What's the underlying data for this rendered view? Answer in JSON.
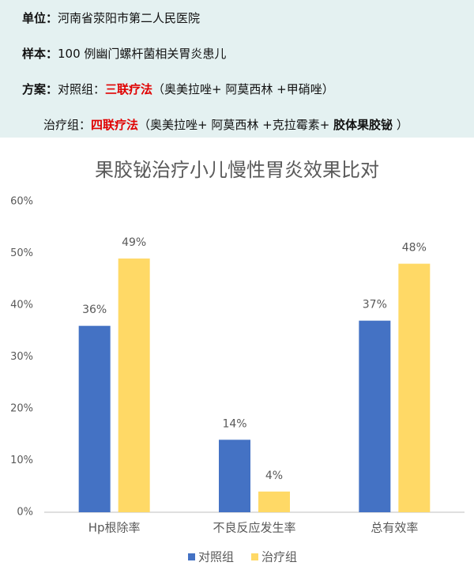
{
  "info": {
    "unit_label": "单位：",
    "unit": "河南省荥阳市第二人民医院",
    "sample_label": "样本：",
    "sample": "100 例幽门螺杆菌相关胃炎患儿",
    "plan_label": "方案：",
    "control_label": "对照组：",
    "control_method": "三联疗法",
    "control_drugs": "（奥美拉唑+ 阿莫西林 +甲硝唑）",
    "treatment_label": "治疗组：",
    "treatment_method": "四联疗法",
    "treatment_drugs": "（奥美拉唑+ 阿莫西林 +克拉霉素+ ",
    "treatment_key_drug": "胶体果胶铋",
    "treatment_close": " ）"
  },
  "chart_data": {
    "type": "bar",
    "title": "果胶铋治疗小儿慢性胃炎效果比对",
    "categories": [
      "Hp根除率",
      "不良反应发生率",
      "总有效率"
    ],
    "series": [
      {
        "name": "对照组",
        "color": "#4472c4",
        "values": [
          36,
          14,
          37
        ],
        "value_labels": [
          "36%",
          "14%",
          "37%"
        ]
      },
      {
        "name": "治疗组",
        "color": "#ffd966",
        "values": [
          49,
          4,
          48
        ],
        "value_labels": [
          "49%",
          "4%",
          "48%"
        ]
      }
    ],
    "ylim": [
      0,
      60
    ],
    "yticks": [
      {
        "value": 0,
        "label": "0%"
      },
      {
        "value": 10,
        "label": "10%"
      },
      {
        "value": 20,
        "label": "20%"
      },
      {
        "value": 30,
        "label": "30%"
      },
      {
        "value": 40,
        "label": "40%"
      },
      {
        "value": 50,
        "label": "50%"
      },
      {
        "value": 60,
        "label": "60%"
      }
    ],
    "grid": false,
    "legend": "bottom"
  }
}
